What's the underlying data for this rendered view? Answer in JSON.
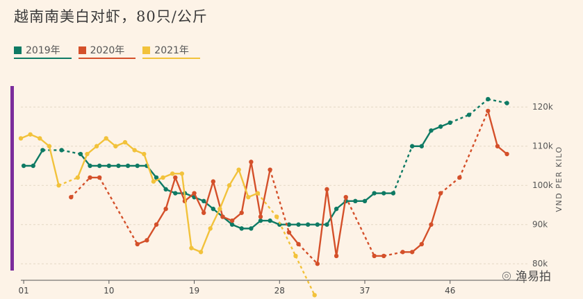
{
  "title": "越南南美白对虾，80只/公斤",
  "watermark": {
    "text": "渔易拍",
    "icon": "wechat-icon"
  },
  "chart_data": {
    "type": "line",
    "ylabel": "VND PER KILO",
    "y_ticks": [
      {
        "value": 80,
        "label": "80k"
      },
      {
        "value": 90,
        "label": "90k"
      },
      {
        "value": 100,
        "label": "100k"
      },
      {
        "value": 110,
        "label": "110k"
      },
      {
        "value": 120,
        "label": "120k"
      }
    ],
    "x_ticks": [
      {
        "value": 1,
        "label": "01"
      },
      {
        "value": 10,
        "label": "10"
      },
      {
        "value": 19,
        "label": "19"
      },
      {
        "value": 28,
        "label": "28"
      },
      {
        "value": 37,
        "label": "37"
      },
      {
        "value": 46,
        "label": "46"
      }
    ],
    "xlim": [
      0.7,
      53.5
    ],
    "ylim": [
      76.5,
      125
    ],
    "grid": true,
    "legend_position": "top-left",
    "series": [
      {
        "name": "2019年",
        "color": "#0e7a64",
        "points": [
          [
            1,
            105
          ],
          [
            2,
            105
          ],
          [
            3,
            109
          ],
          null,
          [
            5,
            109
          ],
          null,
          [
            7,
            108
          ],
          [
            8,
            105
          ],
          [
            9,
            105
          ],
          [
            10,
            105
          ],
          [
            11,
            105
          ],
          [
            12,
            105
          ],
          [
            13,
            105
          ],
          [
            14,
            105
          ],
          [
            15,
            102
          ],
          [
            16,
            99
          ],
          [
            17,
            98
          ],
          [
            18,
            98
          ],
          [
            19,
            97
          ],
          [
            20,
            96
          ],
          [
            21,
            94
          ],
          [
            22,
            92
          ],
          [
            23,
            90
          ],
          [
            24,
            89
          ],
          [
            25,
            89
          ],
          [
            26,
            91
          ],
          [
            27,
            91
          ],
          [
            28,
            90
          ],
          [
            29,
            90
          ],
          [
            30,
            90
          ],
          [
            31,
            90
          ],
          [
            32,
            90
          ],
          [
            33,
            90
          ],
          [
            34,
            94
          ],
          [
            35,
            96
          ],
          [
            36,
            96
          ],
          [
            37,
            96
          ],
          [
            38,
            98
          ],
          [
            39,
            98
          ],
          [
            40,
            98
          ],
          null,
          [
            42,
            110
          ],
          [
            43,
            110
          ],
          [
            44,
            114
          ],
          [
            45,
            115
          ],
          [
            46,
            116
          ],
          null,
          [
            48,
            118
          ],
          null,
          [
            50,
            122
          ],
          null,
          [
            52,
            121
          ]
        ],
        "dashed_gaps": [
          [
            3,
            5
          ],
          [
            5,
            7
          ],
          [
            40,
            42
          ],
          [
            46,
            48
          ],
          [
            48,
            50
          ],
          [
            50,
            52
          ]
        ]
      },
      {
        "name": "2020年",
        "color": "#d4502a",
        "points": [
          [
            6,
            97
          ],
          null,
          [
            8,
            102
          ],
          [
            9,
            102
          ],
          null,
          [
            13,
            85
          ],
          [
            14,
            86
          ],
          [
            15,
            90
          ],
          [
            16,
            94
          ],
          [
            17,
            102
          ],
          [
            18,
            96
          ],
          [
            19,
            98
          ],
          [
            20,
            93
          ],
          [
            21,
            101
          ],
          [
            22,
            92
          ],
          [
            23,
            91
          ],
          [
            24,
            93
          ],
          [
            25,
            106
          ],
          [
            26,
            92
          ],
          [
            27,
            104
          ],
          null,
          [
            29,
            88
          ],
          [
            30,
            85
          ],
          null,
          [
            32,
            80
          ],
          [
            33,
            99
          ],
          [
            34,
            82
          ],
          [
            35,
            97
          ],
          null,
          [
            38,
            82
          ],
          [
            39,
            82
          ],
          null,
          [
            41,
            83
          ],
          [
            42,
            83
          ],
          [
            43,
            85
          ],
          [
            44,
            90
          ],
          [
            45,
            98
          ],
          null,
          [
            47,
            102
          ],
          null,
          [
            50,
            119
          ],
          [
            51,
            110
          ],
          [
            52,
            108
          ]
        ],
        "dashed_gaps": [
          [
            6,
            8
          ],
          [
            9,
            13
          ],
          [
            27,
            29
          ],
          [
            30,
            32
          ],
          [
            35,
            38
          ],
          [
            39,
            41
          ],
          [
            45,
            47
          ],
          [
            47,
            50
          ]
        ]
      },
      {
        "name": "2021年",
        "color": "#f2c23b",
        "points": [
          [
            0.7,
            112
          ],
          [
            1.7,
            113
          ],
          [
            2.7,
            112
          ],
          [
            3.7,
            110
          ],
          [
            4.7,
            100
          ],
          null,
          [
            6.7,
            102
          ],
          [
            7.7,
            108
          ],
          [
            8.7,
            110
          ],
          [
            9.7,
            112
          ],
          [
            10.7,
            110
          ],
          [
            11.7,
            111
          ],
          [
            12.7,
            109
          ],
          [
            13.7,
            108
          ],
          [
            14.7,
            101
          ],
          [
            15.7,
            102
          ],
          [
            16.7,
            103
          ],
          [
            17.7,
            103
          ],
          [
            18.7,
            84
          ],
          [
            19.7,
            83
          ],
          [
            20.7,
            89
          ],
          [
            21.7,
            94
          ],
          [
            22.7,
            100
          ],
          [
            23.7,
            104
          ],
          [
            24.7,
            97
          ],
          [
            25.7,
            98
          ],
          null,
          [
            27.7,
            92
          ],
          null,
          [
            29.7,
            82
          ],
          null,
          [
            31.7,
            72
          ]
        ],
        "dashed_gaps": [
          [
            4.7,
            6.7
          ],
          [
            25.7,
            27.7
          ],
          [
            27.7,
            29.7
          ],
          [
            29.7,
            31.7
          ]
        ]
      }
    ]
  }
}
